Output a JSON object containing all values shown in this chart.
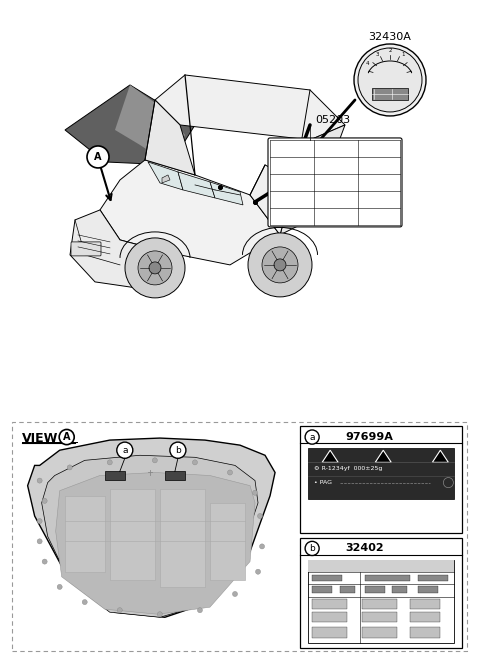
{
  "bg_color": "#ffffff",
  "part_32430A_label": "32430A",
  "part_05203_label": "05203",
  "part_97699A_label": "97699A",
  "part_32402_label": "32402",
  "refrigerant_text": "R-1234yf  000±25g",
  "oil_text": "PAG",
  "line_color": "#000000",
  "car_fill": "#f5f5f5",
  "hood_dark": "#888888",
  "hood_light": "#cccccc"
}
